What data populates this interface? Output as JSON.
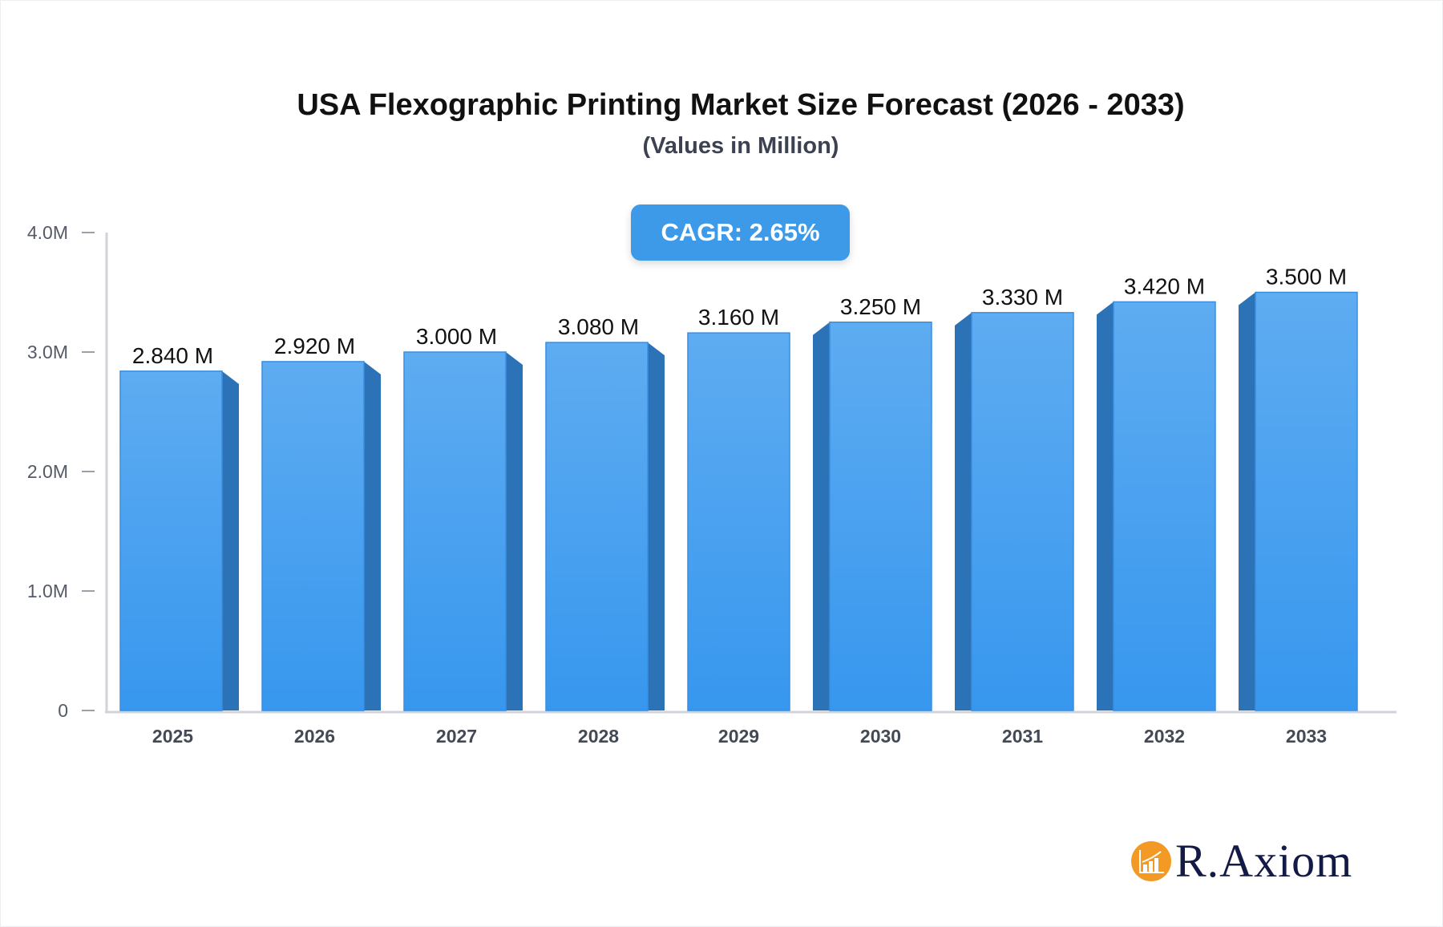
{
  "chart_data": {
    "type": "bar",
    "title": "USA Flexographic Printing Market Size Forecast (2026 - 2033)",
    "subtitle": "(Values in Million)",
    "categories": [
      "2025",
      "2026",
      "2027",
      "2028",
      "2029",
      "2030",
      "2031",
      "2032",
      "2033"
    ],
    "values": [
      2.84,
      2.92,
      3.0,
      3.08,
      3.16,
      3.25,
      3.33,
      3.42,
      3.5
    ],
    "data_labels": [
      "2.840 M",
      "2.920 M",
      "3.000 M",
      "3.080 M",
      "3.160 M",
      "3.250 M",
      "3.330 M",
      "3.420 M",
      "3.500 M"
    ],
    "yticks": [
      0,
      1,
      2,
      3,
      4
    ],
    "ytick_labels": [
      "0",
      "1.0M",
      "2.0M",
      "3.0M",
      "4.0M"
    ],
    "ylim": [
      0,
      4
    ],
    "xlabel": "",
    "ylabel": "",
    "grid": false,
    "annotation": "CAGR: 2.65%",
    "colors": {
      "bar_top": "#5eacf1",
      "bar_bottom": "#3797ee",
      "bar_side": "#2b72b6",
      "axis": "#d0d3da",
      "cagr_bg": "#3d9ae9"
    }
  },
  "brand": {
    "name": "R.Axiom",
    "icon": "bar-chart-growth-icon",
    "color": "#f39a26"
  }
}
